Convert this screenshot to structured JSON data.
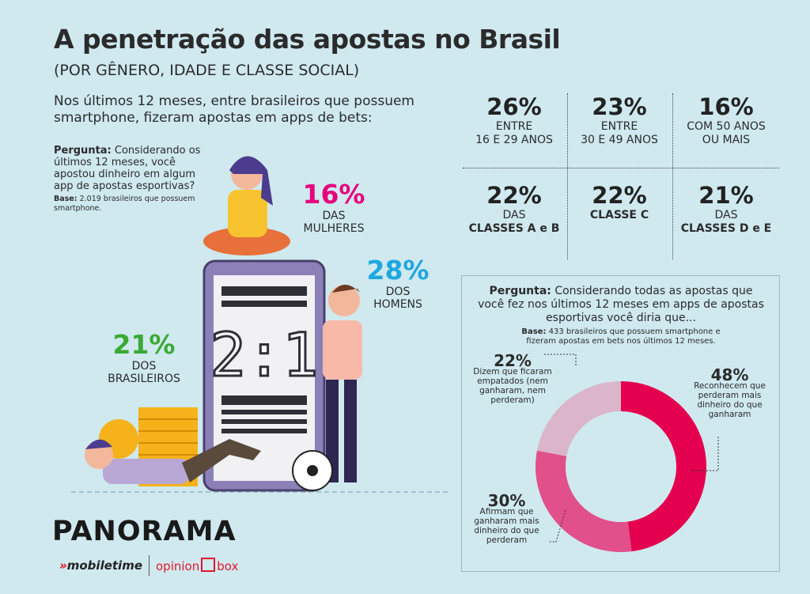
{
  "header": {
    "title": "A penetração das apostas no Brasil",
    "subtitle": "(POR GÊNERO, IDADE E CLASSE SOCIAL)",
    "intro": "Nos últimos 12 meses, entre brasileiros que possuem smartphone, fizeram apostas em apps de bets:"
  },
  "question1": {
    "label": "Pergunta:",
    "text": " Considerando os últimos 12 meses, você apostou dinheiro em algum app de apostas esportivas?",
    "base_label": "Base:",
    "base_text": " 2.019 brasileiros que possuem smartphone."
  },
  "gender": [
    {
      "pct": "16%",
      "label": "DAS MULHERES",
      "color": "#e6007e"
    },
    {
      "pct": "28%",
      "label": "DOS HOMENS",
      "color": "#1ea7e1"
    },
    {
      "pct": "21%",
      "label": "DOS BRASILEIROS",
      "color": "#3aaa35"
    }
  ],
  "phone_score": "2:1",
  "stats": [
    {
      "pct": "26%",
      "line1": "ENTRE",
      "line2": "16 E 29 ANOS"
    },
    {
      "pct": "23%",
      "line1": "ENTRE",
      "line2": "30 E 49 ANOS"
    },
    {
      "pct": "16%",
      "line1": "COM 50 ANOS",
      "line2": "OU MAIS"
    },
    {
      "pct": "22%",
      "line1": "DAS",
      "line2": "CLASSES A e B"
    },
    {
      "pct": "22%",
      "line1": "CLASSE C",
      "line2": ""
    },
    {
      "pct": "21%",
      "line1": "DAS",
      "line2": "CLASSES D e E"
    }
  ],
  "question2": {
    "label": "Pergunta:",
    "text": " Considerando todas as apostas que você fez nos últimos 12 meses em apps de apostas esportivas você diria que...",
    "base_label": "Base:",
    "base_text": " 433 brasileiros que possuem smartphone e fizeram apostas em bets nos últimos 12 meses."
  },
  "chart_data": {
    "type": "pie",
    "donut": true,
    "slices": [
      {
        "value": 48,
        "label": "48%",
        "text": "Reconhecem que perderam mais dinheiro do que ganharam",
        "color": "#e5004f"
      },
      {
        "value": 30,
        "label": "30%",
        "text": "Afirmam que ganharam mais dinheiro do que perderam",
        "color": "#e1508a"
      },
      {
        "value": 22,
        "label": "22%",
        "text": "Dizem que ficaram empatados (nem ganharam, nem perderam)",
        "color": "#dbb5c9"
      }
    ]
  },
  "footer": {
    "brand": "PANORAMA",
    "logo1": "mobiletime",
    "logo2a": "opinion",
    "logo2b": "box"
  }
}
